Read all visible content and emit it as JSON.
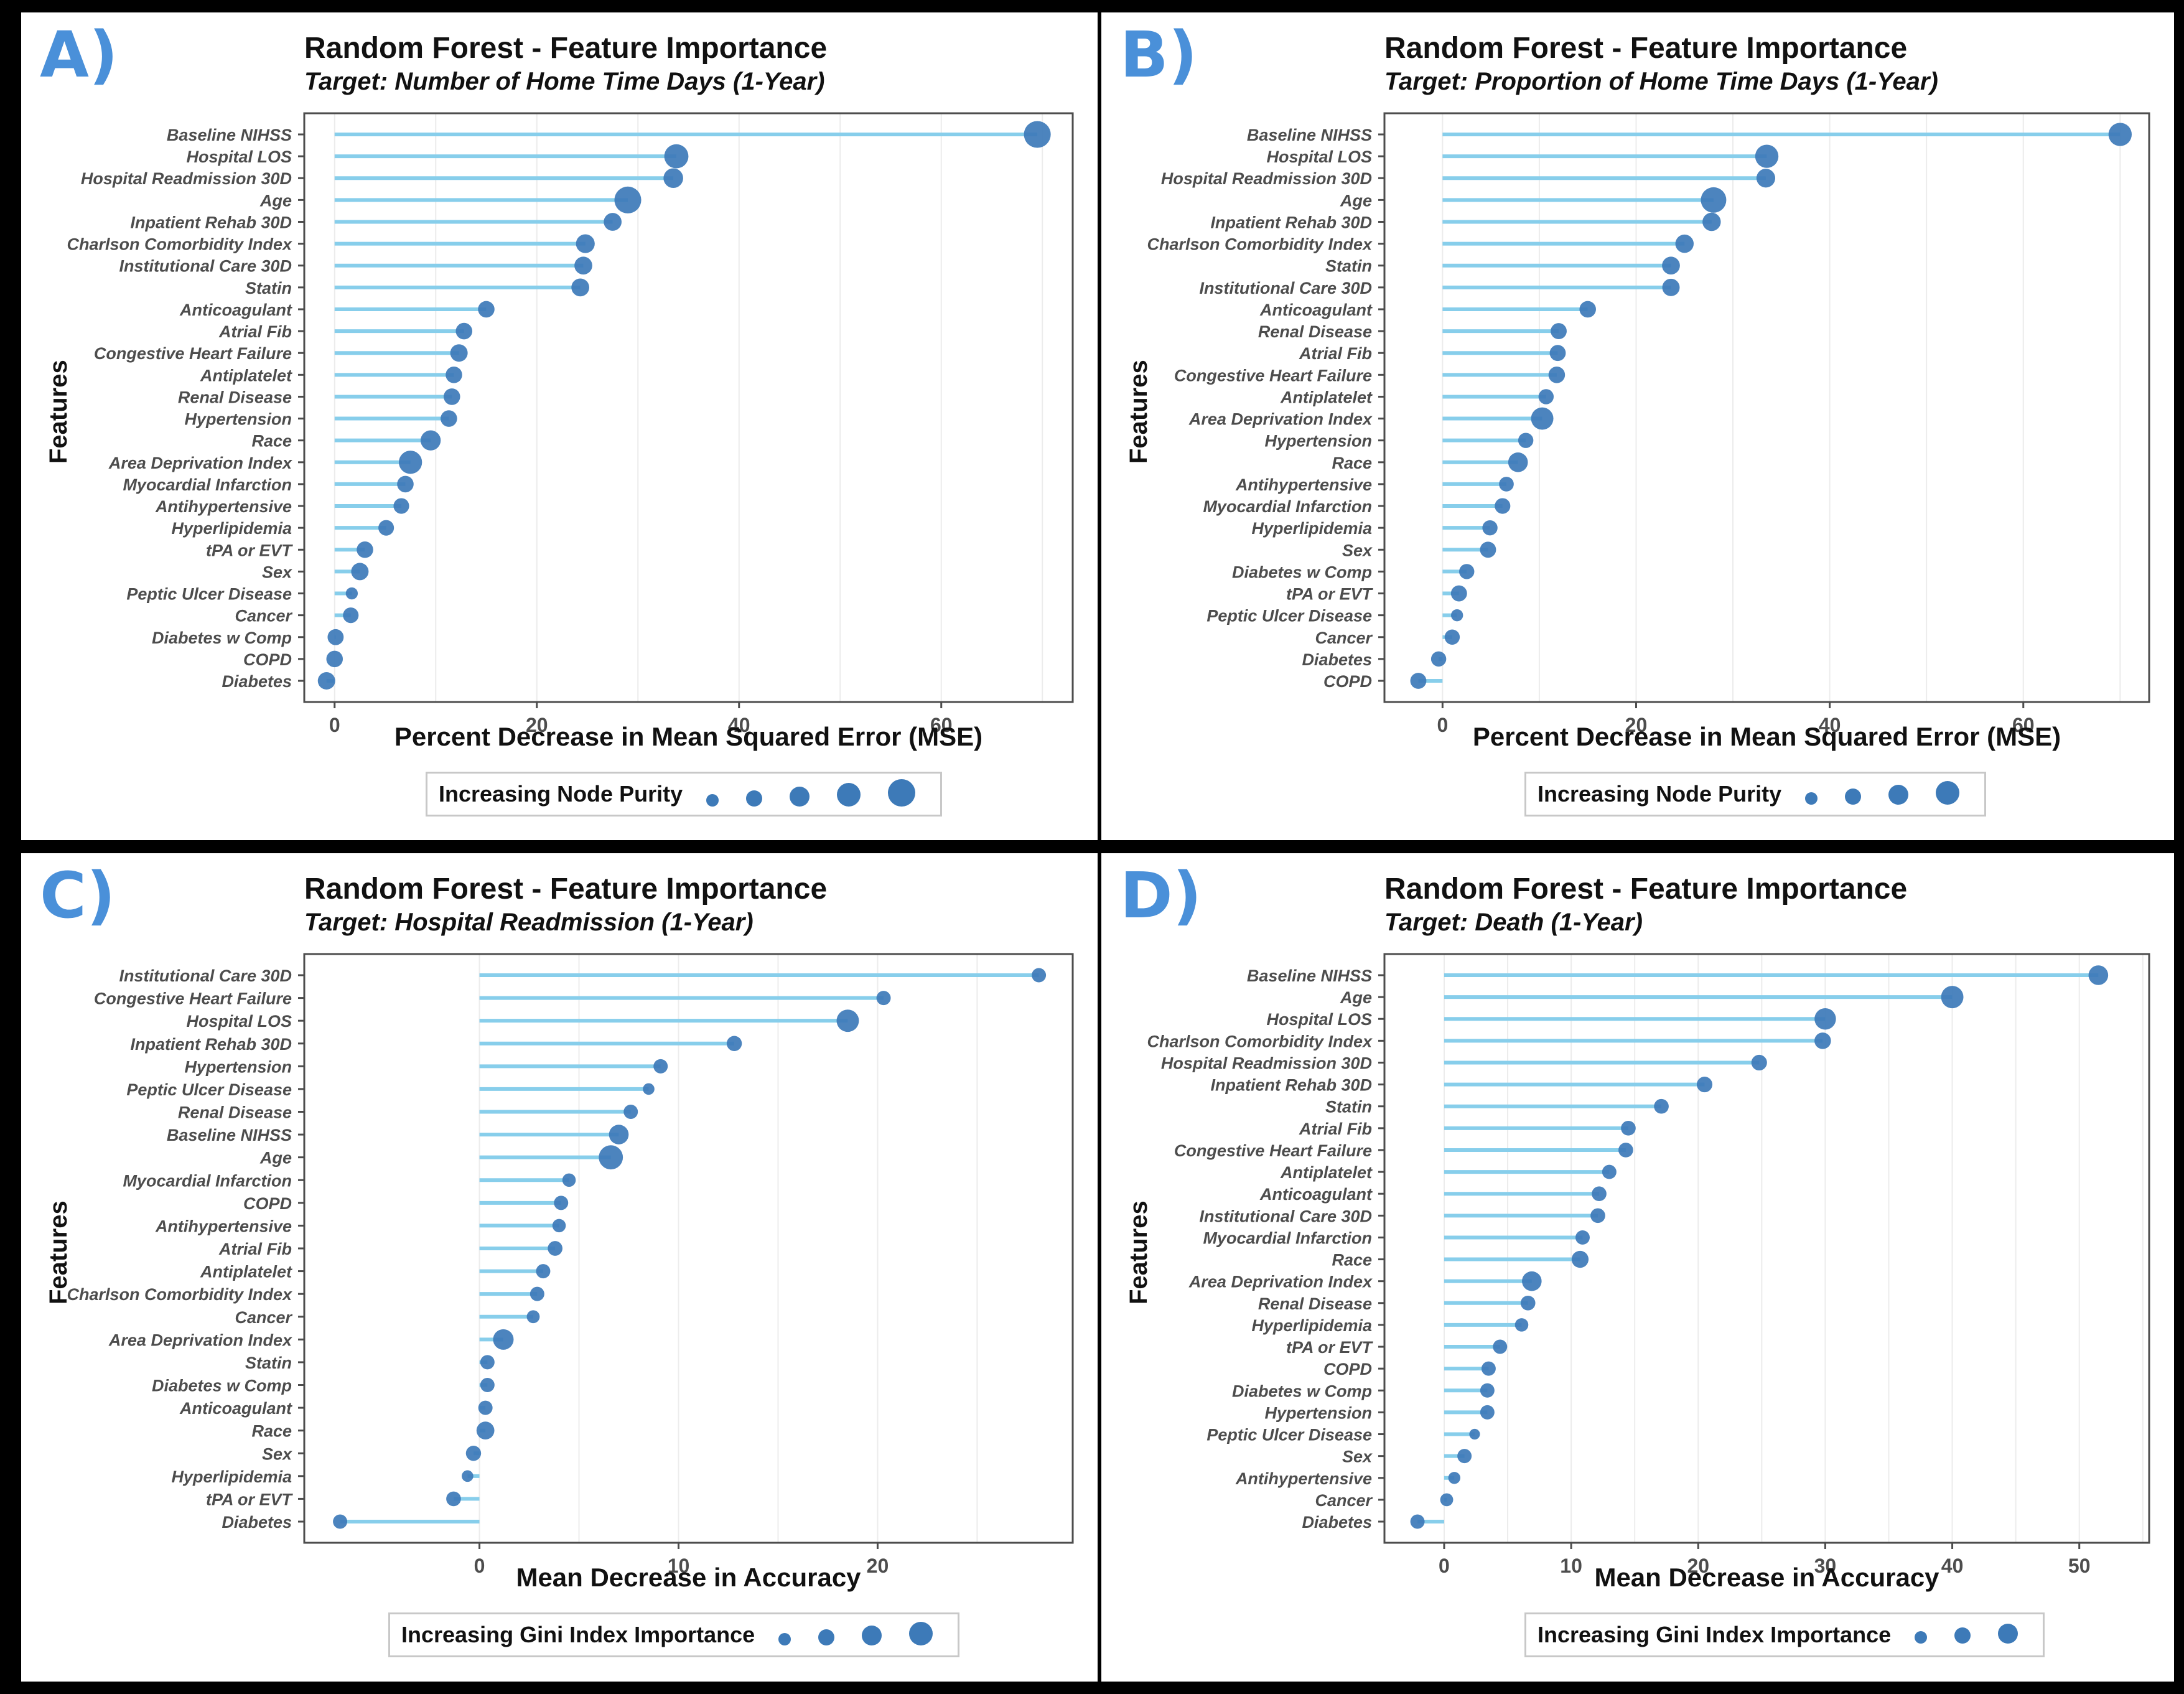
{
  "colors": {
    "stem": "#87ceeb",
    "dot": "#3d7ab8",
    "grid": "#ececec",
    "panel_label": "#4a90d9"
  },
  "panels": [
    {
      "label": "A)",
      "title": "Random Forest - Feature Importance",
      "subtitle": "Target: Number of Home Time Days (1-Year)",
      "xlabel": "Percent Decrease in Mean Squared Error (MSE)",
      "ylabel": "Features",
      "legend_title": "Increasing Node Purity",
      "legend_sizes": [
        1,
        2,
        3,
        4,
        5
      ]
    },
    {
      "label": "B)",
      "title": "Random Forest - Feature Importance",
      "subtitle": "Target: Proportion of Home Time Days (1-Year)",
      "xlabel": "Percent Decrease in Mean Squared Error (MSE)",
      "ylabel": "Features",
      "legend_title": "Increasing Node Purity",
      "legend_sizes": [
        1,
        2,
        3,
        4
      ]
    },
    {
      "label": "C)",
      "title": "Random Forest - Feature Importance",
      "subtitle": "Target: Hospital Readmission (1-Year)",
      "xlabel": "Mean Decrease in Accuracy",
      "ylabel": "Features",
      "legend_title": "Increasing Gini Index Importance",
      "legend_sizes": [
        1,
        2,
        3,
        4
      ]
    },
    {
      "label": "D)",
      "title": "Random Forest - Feature Importance",
      "subtitle": "Target: Death (1-Year)",
      "xlabel": "Mean Decrease in Accuracy",
      "ylabel": "Features",
      "legend_title": "Increasing Gini Index Importance",
      "legend_sizes": [
        1,
        2,
        3
      ]
    }
  ],
  "chart_data": [
    {
      "type": "lollipop",
      "title": "Random Forest - Feature Importance",
      "subtitle": "Target: Number of Home Time Days (1-Year)",
      "xlabel": "Percent Decrease in Mean Squared Error (MSE)",
      "ylabel": "Features",
      "xlim": [
        -3,
        73
      ],
      "xticks": [
        0,
        20,
        40,
        60
      ],
      "grid": true,
      "legend": "bottom",
      "features": [
        "Baseline NIHSS",
        "Hospital LOS",
        "Hospital Readmission 30D",
        "Age",
        "Inpatient Rehab 30D",
        "Charlson Comorbidity Index",
        "Institutional Care 30D",
        "Statin",
        "Anticoagulant",
        "Atrial Fib",
        "Congestive Heart Failure",
        "Antiplatelet",
        "Renal Disease",
        "Hypertension",
        "Race",
        "Area Deprivation Index",
        "Myocardial Infarction",
        "Antihypertensive",
        "Hyperlipidemia",
        "tPA or EVT",
        "Sex",
        "Peptic Ulcer Disease",
        "Cancer",
        "Diabetes w Comp",
        "COPD",
        "Diabetes"
      ],
      "values": [
        69.5,
        33.8,
        33.5,
        29.0,
        27.5,
        24.8,
        24.6,
        24.3,
        15.0,
        12.8,
        12.3,
        11.8,
        11.6,
        11.3,
        9.5,
        7.5,
        7.0,
        6.6,
        5.1,
        3.0,
        2.5,
        1.7,
        1.6,
        0.1,
        0.0,
        -0.8
      ],
      "importance": [
        4.6,
        4.0,
        3.0,
        4.6,
        2.6,
        2.8,
        2.6,
        2.6,
        2.3,
        2.3,
        2.5,
        2.3,
        2.3,
        2.3,
        3.1,
        3.8,
        2.3,
        2.1,
        2.1,
        2.3,
        2.5,
        1.3,
        2.1,
        2.2,
        2.3,
        2.5
      ]
    },
    {
      "type": "lollipop",
      "title": "Random Forest - Feature Importance",
      "subtitle": "Target: Proportion of Home Time Days (1-Year)",
      "xlabel": "Percent Decrease in Mean Squared Error (MSE)",
      "ylabel": "Features",
      "xlim": [
        -6,
        73
      ],
      "xticks": [
        0,
        20,
        40,
        60
      ],
      "grid": true,
      "legend": "bottom",
      "features": [
        "Baseline NIHSS",
        "Hospital LOS",
        "Hospital Readmission 30D",
        "Age",
        "Inpatient Rehab 30D",
        "Charlson Comorbidity Index",
        "Statin",
        "Institutional Care 30D",
        "Anticoagulant",
        "Renal Disease",
        "Atrial Fib",
        "Congestive Heart Failure",
        "Antiplatelet",
        "Area Deprivation Index",
        "Hypertension",
        "Race",
        "Antihypertensive",
        "Myocardial Infarction",
        "Hyperlipidemia",
        "Sex",
        "Diabetes w Comp",
        "tPA or EVT",
        "Peptic Ulcer Disease",
        "Cancer",
        "Diabetes",
        "COPD"
      ],
      "values": [
        70.0,
        33.5,
        33.4,
        28.0,
        27.8,
        25.0,
        23.6,
        23.6,
        15.0,
        12.0,
        11.9,
        11.8,
        10.7,
        10.3,
        8.6,
        7.8,
        6.6,
        6.2,
        4.9,
        4.7,
        2.5,
        1.7,
        1.5,
        1.0,
        -0.4,
        -2.5
      ],
      "importance": [
        3.8,
        3.8,
        2.8,
        4.3,
        2.7,
        2.7,
        2.6,
        2.5,
        2.3,
        2.2,
        2.2,
        2.3,
        2.0,
        3.6,
        2.0,
        3.0,
        1.9,
        2.1,
        2.0,
        2.2,
        2.0,
        2.2,
        1.3,
        2.0,
        2.0,
        2.2
      ]
    },
    {
      "type": "lollipop",
      "title": "Random Forest - Feature Importance",
      "subtitle": "Target: Hospital Readmission (1-Year)",
      "xlabel": "Mean Decrease in Accuracy",
      "ylabel": "Features",
      "xlim": [
        -8.8,
        29.8
      ],
      "xticks": [
        0,
        10,
        20
      ],
      "grid": true,
      "legend": "bottom",
      "features": [
        "Institutional Care 30D",
        "Congestive Heart Failure",
        "Hospital LOS",
        "Inpatient Rehab 30D",
        "Hypertension",
        "Peptic Ulcer Disease",
        "Renal Disease",
        "Baseline NIHSS",
        "Age",
        "Myocardial Infarction",
        "COPD",
        "Antihypertensive",
        "Atrial Fib",
        "Antiplatelet",
        "Charlson Comorbidity Index",
        "Cancer",
        "Area Deprivation Index",
        "Statin",
        "Diabetes w Comp",
        "Anticoagulant",
        "Race",
        "Sex",
        "Hyperlipidemia",
        "tPA or EVT",
        "Diabetes"
      ],
      "values": [
        28.1,
        20.3,
        18.5,
        12.8,
        9.1,
        8.5,
        7.6,
        7.0,
        6.6,
        4.5,
        4.1,
        4.0,
        3.8,
        3.2,
        2.9,
        2.7,
        1.2,
        0.4,
        0.4,
        0.3,
        0.3,
        -0.3,
        -0.6,
        -1.3,
        -7.0
      ],
      "importance": [
        1.8,
        1.8,
        3.6,
        2.0,
        1.8,
        1.2,
        1.8,
        3.0,
        4.0,
        1.6,
        1.8,
        1.6,
        1.9,
        1.8,
        1.8,
        1.5,
        3.2,
        1.8,
        1.8,
        1.8,
        2.6,
        2.0,
        1.2,
        1.9,
        1.8
      ]
    },
    {
      "type": "lollipop",
      "title": "Random Forest - Feature Importance",
      "subtitle": "Target: Death (1-Year)",
      "xlabel": "Mean Decrease in Accuracy",
      "ylabel": "Features",
      "xlim": [
        -4.7,
        55.5
      ],
      "xticks": [
        0,
        10,
        20,
        30,
        40,
        50
      ],
      "grid": true,
      "legend": "bottom",
      "features": [
        "Baseline NIHSS",
        "Age",
        "Hospital LOS",
        "Charlson Comorbidity Index",
        "Hospital Readmission 30D",
        "Inpatient Rehab 30D",
        "Statin",
        "Atrial Fib",
        "Congestive Heart Failure",
        "Antiplatelet",
        "Anticoagulant",
        "Institutional Care 30D",
        "Myocardial Infarction",
        "Race",
        "Area Deprivation Index",
        "Renal Disease",
        "Hyperlipidemia",
        "tPA or EVT",
        "COPD",
        "Diabetes w Comp",
        "Hypertension",
        "Peptic Ulcer Disease",
        "Sex",
        "Antihypertensive",
        "Cancer",
        "Diabetes"
      ],
      "values": [
        51.5,
        40.0,
        30.0,
        29.8,
        24.8,
        20.5,
        17.1,
        14.5,
        14.3,
        13.0,
        12.2,
        12.1,
        10.9,
        10.7,
        6.9,
        6.6,
        6.1,
        4.4,
        3.5,
        3.4,
        3.4,
        2.4,
        1.6,
        0.8,
        0.2,
        -2.1
      ],
      "importance": [
        3.0,
        3.6,
        3.4,
        2.3,
        2.1,
        2.1,
        1.9,
        1.9,
        1.9,
        1.8,
        1.9,
        1.9,
        1.8,
        2.4,
        3.0,
        1.9,
        1.6,
        1.8,
        1.8,
        1.8,
        1.8,
        1.0,
        1.8,
        1.3,
        1.5,
        1.8
      ]
    }
  ]
}
